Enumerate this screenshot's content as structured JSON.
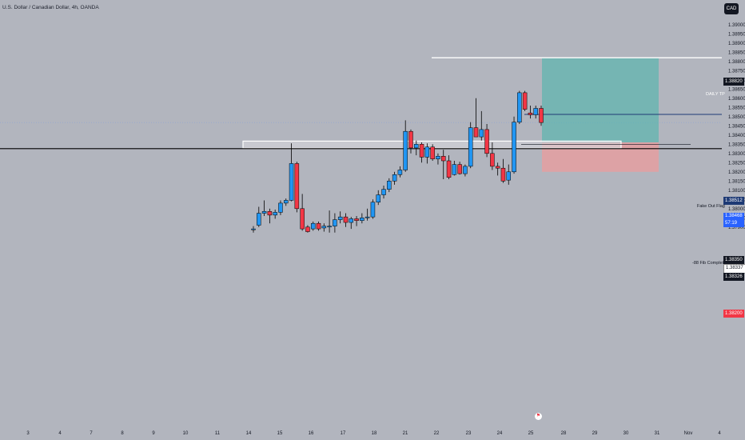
{
  "header": {
    "symbol_title": "U.S. Dollar / Canadian Dollar, 4h, OANDA",
    "currency_button": "CAD"
  },
  "colors": {
    "background": "#b2b5be",
    "bull": "#2196f3",
    "bear": "#f23645",
    "target_zone": "#4db6ac",
    "stop_zone": "#ef9a9a",
    "white_line": "#ffffff",
    "black_line": "#000000",
    "flag_line": "#1e3a75"
  },
  "axes": {
    "y_ticks": [
      "1.39000",
      "1.38950",
      "1.38900",
      "1.38850",
      "1.38800",
      "1.38750",
      "1.38700",
      "1.38650",
      "1.38600",
      "1.38550",
      "1.38500",
      "1.38450",
      "1.38400",
      "1.38350",
      "1.38300",
      "1.38250",
      "1.38200",
      "1.38150",
      "1.38100",
      "1.38050",
      "1.38000",
      "1.37950",
      "1.37900"
    ],
    "x_ticks": [
      "3",
      "4",
      "7",
      "8",
      "9",
      "10",
      "11",
      "14",
      "15",
      "16",
      "17",
      "18",
      "21",
      "22",
      "23",
      "24",
      "25",
      "28",
      "29",
      "30",
      "31",
      "Nov",
      "4"
    ]
  },
  "price_labels": {
    "daily_tp": "1.38820",
    "fake_out_flag": "1.38512",
    "current_price": "1.38468",
    "countdown": "57:19",
    "fib_completion": "1.38350",
    "fib_completion_2": "1.38337",
    "black_line": "1.38326",
    "stop": "1.38200"
  },
  "annotations": {
    "daily_tp": "DAILY TP",
    "fake_out_flag": "Fake Out Flag",
    "fib_completion": "-88 Fib Completion"
  },
  "chart_data": {
    "type": "candlestick",
    "title": "U.S. Dollar / Canadian Dollar, 4h, OANDA",
    "x_axis_labels": [
      "3",
      "4",
      "7",
      "8",
      "9",
      "10",
      "11",
      "14",
      "15",
      "16",
      "17",
      "18",
      "21",
      "22",
      "23",
      "24",
      "25",
      "28",
      "29",
      "30",
      "31",
      "Nov",
      "4"
    ],
    "ylim": [
      1.3788,
      1.3904
    ],
    "candles": [
      {
        "o": 1.37885,
        "h": 1.37905,
        "l": 1.3787,
        "c": 1.3789
      },
      {
        "o": 1.3791,
        "h": 1.3801,
        "l": 1.379,
        "c": 1.37975
      },
      {
        "o": 1.37975,
        "h": 1.38045,
        "l": 1.3796,
        "c": 1.37985
      },
      {
        "o": 1.37985,
        "h": 1.38,
        "l": 1.3792,
        "c": 1.37965
      },
      {
        "o": 1.37965,
        "h": 1.37995,
        "l": 1.37945,
        "c": 1.3798
      },
      {
        "o": 1.3798,
        "h": 1.38045,
        "l": 1.37965,
        "c": 1.3803
      },
      {
        "o": 1.3803,
        "h": 1.38055,
        "l": 1.38015,
        "c": 1.38045
      },
      {
        "o": 1.38045,
        "h": 1.38355,
        "l": 1.3804,
        "c": 1.38245
      },
      {
        "o": 1.38245,
        "h": 1.38255,
        "l": 1.3798,
        "c": 1.38
      },
      {
        "o": 1.38,
        "h": 1.3808,
        "l": 1.3788,
        "c": 1.3789
      },
      {
        "o": 1.379,
        "h": 1.3791,
        "l": 1.3787,
        "c": 1.37875
      },
      {
        "o": 1.3789,
        "h": 1.3793,
        "l": 1.3788,
        "c": 1.3792
      },
      {
        "o": 1.3792,
        "h": 1.3793,
        "l": 1.3788,
        "c": 1.3789
      },
      {
        "o": 1.37895,
        "h": 1.3792,
        "l": 1.37875,
        "c": 1.37905
      },
      {
        "o": 1.379,
        "h": 1.3799,
        "l": 1.3787,
        "c": 1.37905
      },
      {
        "o": 1.37905,
        "h": 1.37975,
        "l": 1.3787,
        "c": 1.3794
      },
      {
        "o": 1.3794,
        "h": 1.37985,
        "l": 1.3792,
        "c": 1.37955
      },
      {
        "o": 1.37955,
        "h": 1.37975,
        "l": 1.379,
        "c": 1.37925
      },
      {
        "o": 1.37925,
        "h": 1.37955,
        "l": 1.3789,
        "c": 1.37945
      },
      {
        "o": 1.37945,
        "h": 1.3796,
        "l": 1.37905,
        "c": 1.37935
      },
      {
        "o": 1.37935,
        "h": 1.37975,
        "l": 1.3792,
        "c": 1.3795
      },
      {
        "o": 1.3795,
        "h": 1.38,
        "l": 1.37935,
        "c": 1.37955
      },
      {
        "o": 1.37955,
        "h": 1.3805,
        "l": 1.37945,
        "c": 1.38035
      },
      {
        "o": 1.38035,
        "h": 1.381,
        "l": 1.3802,
        "c": 1.38075
      },
      {
        "o": 1.38075,
        "h": 1.38125,
        "l": 1.38055,
        "c": 1.38105
      },
      {
        "o": 1.38105,
        "h": 1.38165,
        "l": 1.3809,
        "c": 1.3815
      },
      {
        "o": 1.3815,
        "h": 1.382,
        "l": 1.3813,
        "c": 1.38185
      },
      {
        "o": 1.38185,
        "h": 1.3823,
        "l": 1.3817,
        "c": 1.3821
      },
      {
        "o": 1.3821,
        "h": 1.3848,
        "l": 1.382,
        "c": 1.3842
      },
      {
        "o": 1.3842,
        "h": 1.3843,
        "l": 1.383,
        "c": 1.3833
      },
      {
        "o": 1.3833,
        "h": 1.3837,
        "l": 1.3829,
        "c": 1.3835
      },
      {
        "o": 1.3835,
        "h": 1.3836,
        "l": 1.3825,
        "c": 1.3828
      },
      {
        "o": 1.3828,
        "h": 1.38355,
        "l": 1.38245,
        "c": 1.38335
      },
      {
        "o": 1.38335,
        "h": 1.3835,
        "l": 1.3826,
        "c": 1.3827
      },
      {
        "o": 1.3827,
        "h": 1.383,
        "l": 1.3824,
        "c": 1.38285
      },
      {
        "o": 1.38285,
        "h": 1.3832,
        "l": 1.3816,
        "c": 1.3826
      },
      {
        "o": 1.3826,
        "h": 1.3829,
        "l": 1.3816,
        "c": 1.3817
      },
      {
        "o": 1.38185,
        "h": 1.3826,
        "l": 1.3818,
        "c": 1.3824
      },
      {
        "o": 1.3824,
        "h": 1.38255,
        "l": 1.38185,
        "c": 1.3819
      },
      {
        "o": 1.3819,
        "h": 1.3824,
        "l": 1.38175,
        "c": 1.3823
      },
      {
        "o": 1.3823,
        "h": 1.3847,
        "l": 1.3822,
        "c": 1.3844
      },
      {
        "o": 1.3844,
        "h": 1.386,
        "l": 1.3839,
        "c": 1.3839
      },
      {
        "o": 1.3839,
        "h": 1.3853,
        "l": 1.3837,
        "c": 1.3843
      },
      {
        "o": 1.3843,
        "h": 1.3846,
        "l": 1.3828,
        "c": 1.383
      },
      {
        "o": 1.383,
        "h": 1.3836,
        "l": 1.3821,
        "c": 1.3823
      },
      {
        "o": 1.3823,
        "h": 1.3825,
        "l": 1.3818,
        "c": 1.3822
      },
      {
        "o": 1.3822,
        "h": 1.3827,
        "l": 1.3814,
        "c": 1.3815
      },
      {
        "o": 1.38155,
        "h": 1.3824,
        "l": 1.3813,
        "c": 1.382
      },
      {
        "o": 1.382,
        "h": 1.385,
        "l": 1.3819,
        "c": 1.3847
      },
      {
        "o": 1.3847,
        "h": 1.3864,
        "l": 1.3846,
        "c": 1.3863
      },
      {
        "o": 1.3863,
        "h": 1.3864,
        "l": 1.3853,
        "c": 1.3854
      },
      {
        "o": 1.3852,
        "h": 1.3856,
        "l": 1.3849,
        "c": 1.3851
      },
      {
        "o": 1.3851,
        "h": 1.3856,
        "l": 1.3849,
        "c": 1.38545
      },
      {
        "o": 1.38545,
        "h": 1.3856,
        "l": 1.3845,
        "c": 1.38468
      }
    ],
    "levels": [
      {
        "name": "DAILY TP",
        "price": 1.3882
      },
      {
        "name": "Fake Out Flag",
        "price": 1.38512
      },
      {
        "name": "-88 Fib Completion",
        "price": 1.3835
      },
      {
        "name": "black line",
        "price": 1.38326
      }
    ],
    "zone": {
      "top": 1.38367,
      "bottom": 1.38328
    },
    "position": {
      "entry": 1.3836,
      "target": 1.3882,
      "stop": 1.382
    }
  }
}
